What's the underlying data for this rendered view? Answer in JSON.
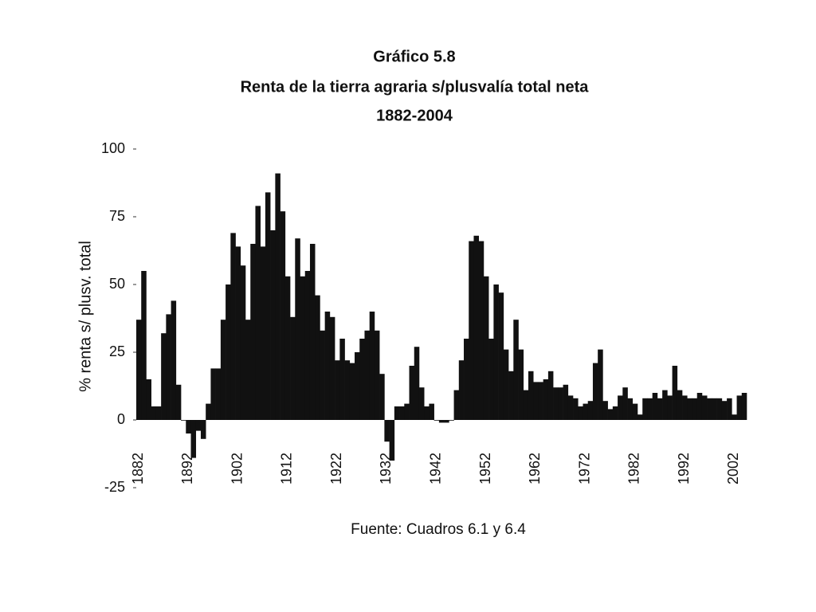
{
  "chart_data": {
    "type": "bar",
    "title": "Gráfico 5.8",
    "subtitle": "Renta de la tierra agraria s/plusvalía total neta",
    "period": "1882-2004",
    "y_label": "% renta s/ plusv. total",
    "source": "Fuente: Cuadros 6.1 y 6.4",
    "color": "#111111",
    "ylim": [
      -25,
      100
    ],
    "yticks": [
      -25,
      0,
      25,
      50,
      75,
      100
    ],
    "categories": [
      "1882",
      null,
      null,
      null,
      null,
      null,
      null,
      null,
      null,
      null,
      "1892",
      null,
      null,
      null,
      null,
      null,
      null,
      null,
      null,
      null,
      "1902",
      null,
      null,
      null,
      null,
      null,
      null,
      null,
      null,
      null,
      "1912",
      null,
      null,
      null,
      null,
      null,
      null,
      null,
      null,
      null,
      "1922",
      null,
      null,
      null,
      null,
      null,
      null,
      null,
      null,
      null,
      "1932",
      null,
      null,
      null,
      null,
      null,
      null,
      null,
      null,
      null,
      "1942",
      null,
      null,
      null,
      null,
      null,
      null,
      null,
      null,
      null,
      "1952",
      null,
      null,
      null,
      null,
      null,
      null,
      null,
      null,
      null,
      "1962",
      null,
      null,
      null,
      null,
      null,
      null,
      null,
      null,
      null,
      "1972",
      null,
      null,
      null,
      null,
      null,
      null,
      null,
      null,
      null,
      "1982",
      null,
      null,
      null,
      null,
      null,
      null,
      null,
      null,
      null,
      "1992",
      null,
      null,
      null,
      null,
      null,
      null,
      null,
      null,
      null,
      "2002",
      null,
      null
    ],
    "values": [
      37,
      55,
      15,
      5,
      5,
      32,
      39,
      44,
      13,
      0,
      -5,
      -14,
      -4,
      -7,
      6,
      19,
      19,
      37,
      50,
      69,
      64,
      57,
      37,
      65,
      79,
      64,
      84,
      70,
      91,
      77,
      53,
      38,
      67,
      53,
      55,
      65,
      46,
      33,
      40,
      38,
      22,
      30,
      22,
      21,
      25,
      30,
      33,
      40,
      33,
      17,
      -8,
      -15,
      5,
      5,
      6,
      20,
      27,
      12,
      5,
      6,
      0,
      -1,
      -1,
      0,
      11,
      22,
      30,
      66,
      68,
      66,
      53,
      30,
      50,
      47,
      26,
      18,
      37,
      26,
      11,
      18,
      14,
      14,
      15,
      18,
      12,
      12,
      13,
      9,
      8,
      5,
      6,
      7,
      21,
      26,
      7,
      4,
      5,
      9,
      12,
      8,
      6,
      2,
      8,
      8,
      10,
      8,
      11,
      9,
      20,
      11,
      9,
      8,
      8,
      10,
      9,
      8,
      8,
      8,
      7,
      8,
      2,
      9,
      10
    ]
  }
}
